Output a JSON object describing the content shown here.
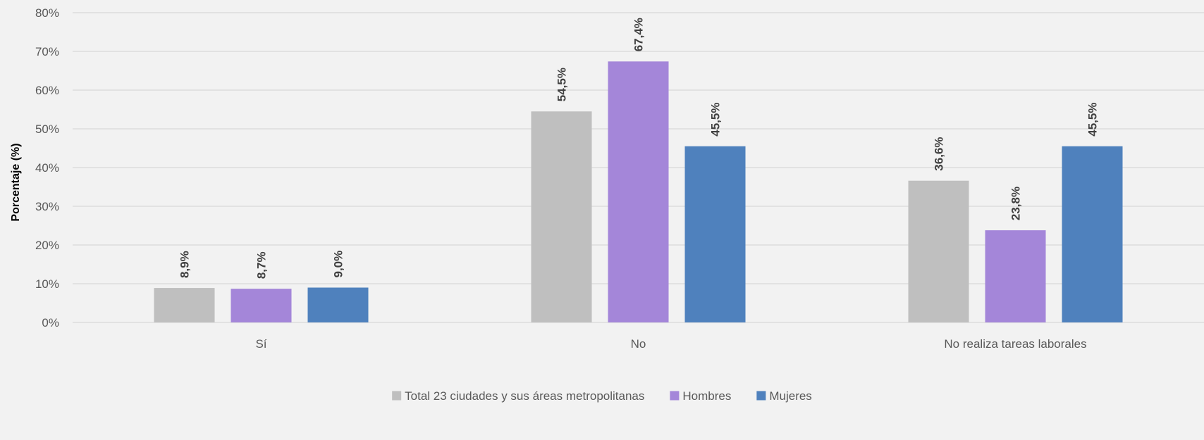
{
  "chart_data": {
    "type": "bar",
    "title": "",
    "xlabel": "",
    "ylabel": "Porcentaje (%)",
    "ylim": [
      0,
      80
    ],
    "y_ticks": [
      0,
      10,
      20,
      30,
      40,
      50,
      60,
      70,
      80
    ],
    "y_tick_suffix": "%",
    "grid": true,
    "legend_position": "bottom",
    "categories": [
      "Sí",
      "No",
      "No realiza tareas laborales"
    ],
    "series": [
      {
        "name": "Total 23 ciudades y sus áreas metropolitanas",
        "color": "#bfbfbf",
        "values": [
          8.9,
          54.5,
          36.6
        ],
        "labels": [
          "8,9%",
          "54,5%",
          "36,6%"
        ]
      },
      {
        "name": "Hombres",
        "color": "#a486d9",
        "values": [
          8.7,
          67.4,
          23.8
        ],
        "labels": [
          "8,7%",
          "67,4%",
          "23,8%"
        ]
      },
      {
        "name": "Mujeres",
        "color": "#4f81bd",
        "values": [
          9.0,
          45.5,
          45.5
        ],
        "labels": [
          "9,0%",
          "45,5%",
          "45,5%"
        ]
      }
    ]
  }
}
